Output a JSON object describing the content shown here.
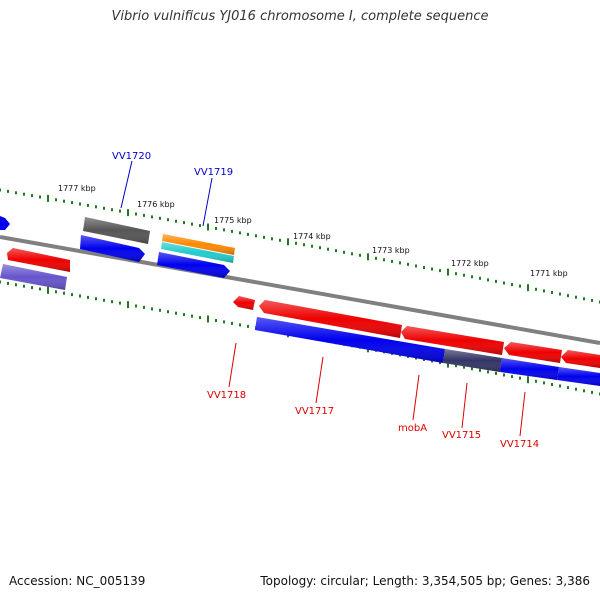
{
  "title": "Vibrio vulnificus YJ016 chromosome I, complete sequence",
  "accession": "Accession: NC_005139",
  "summary": "Topology: circular; Length: 3,354,505 bp; Genes: 3,386",
  "ruler": [
    "1777 kbp",
    "1776 kbp",
    "1775 kbp",
    "1774 kbp",
    "1773 kbp",
    "1772 kbp",
    "1771 kbp"
  ],
  "genes_top": [
    "VV1720",
    "VV1719"
  ],
  "genes_bottom": [
    "VV1718",
    "VV1717",
    "mobA",
    "VV1715",
    "VV1714"
  ],
  "colors": {
    "top_label": "#0000cc",
    "bottom_label": "#dd0000",
    "tick": "#1f7a1f",
    "backbone": "#808080",
    "red": "#ee0000",
    "blue": "#0000ee",
    "grey": "#555555",
    "orange": "#ff8800",
    "cyan": "#22cccc",
    "lavender": "#6655cc",
    "navy": "#333366"
  }
}
